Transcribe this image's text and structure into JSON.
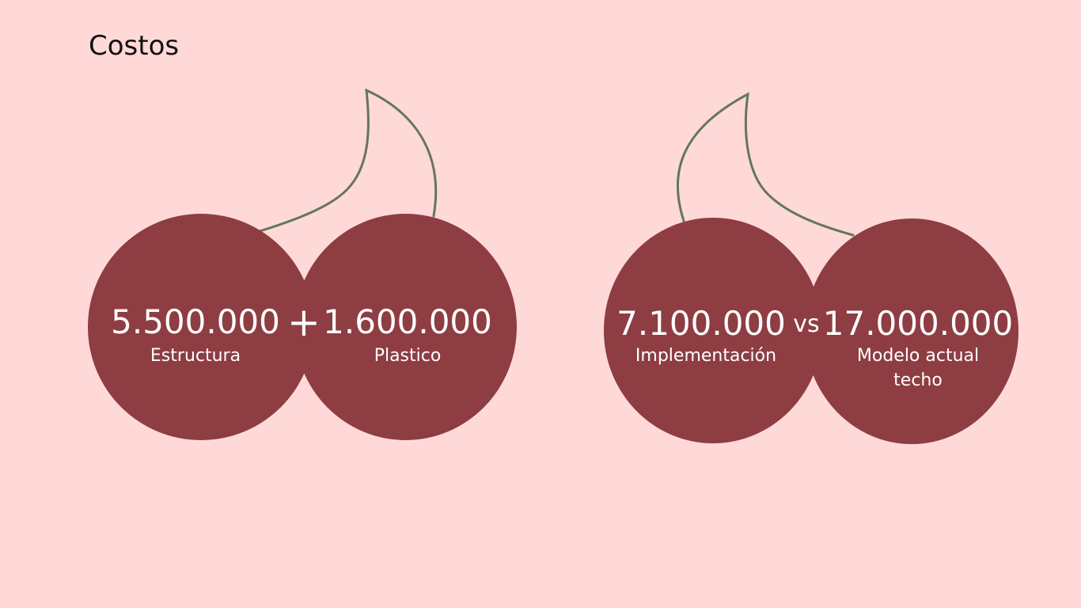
{
  "title": "Costos",
  "colors": {
    "background": "#ffd9d8",
    "cherry": "#8e3d42",
    "stem": "#667659",
    "text_on_cherry": "#ffffff"
  },
  "groups": [
    {
      "left": {
        "value": "5.500.000",
        "label": "Estructura"
      },
      "operator": "+",
      "right": {
        "value": "1.600.000",
        "label": "Plastico"
      }
    },
    {
      "left": {
        "value": "7.100.000",
        "label": "Implementación"
      },
      "operator": "vs",
      "right": {
        "value": "17.000.000",
        "label": "Modelo actual techo"
      }
    }
  ]
}
